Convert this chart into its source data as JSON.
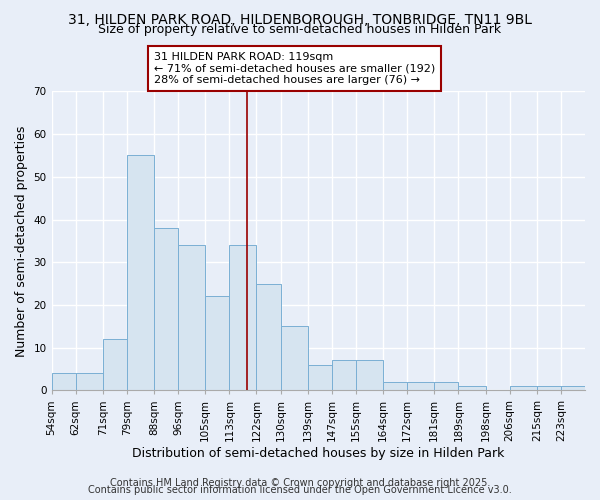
{
  "title1": "31, HILDEN PARK ROAD, HILDENBOROUGH, TONBRIDGE, TN11 9BL",
  "title2": "Size of property relative to semi-detached houses in Hilden Park",
  "xlabel": "Distribution of semi-detached houses by size in Hilden Park",
  "ylabel": "Number of semi-detached properties",
  "bin_labels": [
    "54sqm",
    "62sqm",
    "71sqm",
    "79sqm",
    "88sqm",
    "96sqm",
    "105sqm",
    "113sqm",
    "122sqm",
    "130sqm",
    "139sqm",
    "147sqm",
    "155sqm",
    "164sqm",
    "172sqm",
    "181sqm",
    "189sqm",
    "198sqm",
    "206sqm",
    "215sqm",
    "223sqm"
  ],
  "bar_heights": [
    4,
    4,
    12,
    55,
    38,
    34,
    22,
    34,
    25,
    15,
    6,
    7,
    7,
    2,
    2,
    2,
    1,
    0,
    1,
    1,
    1
  ],
  "bin_edges": [
    54,
    62,
    71,
    79,
    88,
    96,
    105,
    113,
    122,
    130,
    139,
    147,
    155,
    164,
    172,
    181,
    189,
    198,
    206,
    215,
    223,
    231
  ],
  "property_value": 119,
  "bar_color": "#d6e4f0",
  "bar_edge_color": "#7aafd4",
  "vline_color": "#990000",
  "annotation_text": "31 HILDEN PARK ROAD: 119sqm\n← 71% of semi-detached houses are smaller (192)\n28% of semi-detached houses are larger (76) →",
  "annotation_box_color": "#ffffff",
  "annotation_box_edge": "#990000",
  "ylim": [
    0,
    70
  ],
  "yticks": [
    0,
    10,
    20,
    30,
    40,
    50,
    60,
    70
  ],
  "footer1": "Contains HM Land Registry data © Crown copyright and database right 2025.",
  "footer2": "Contains public sector information licensed under the Open Government Licence v3.0.",
  "background_color": "#e8eef8",
  "plot_bg_color": "#e8eef8",
  "grid_color": "#ffffff",
  "title1_fontsize": 10,
  "title2_fontsize": 9,
  "axis_label_fontsize": 9,
  "tick_fontsize": 7.5,
  "annotation_fontsize": 8,
  "footer_fontsize": 7
}
